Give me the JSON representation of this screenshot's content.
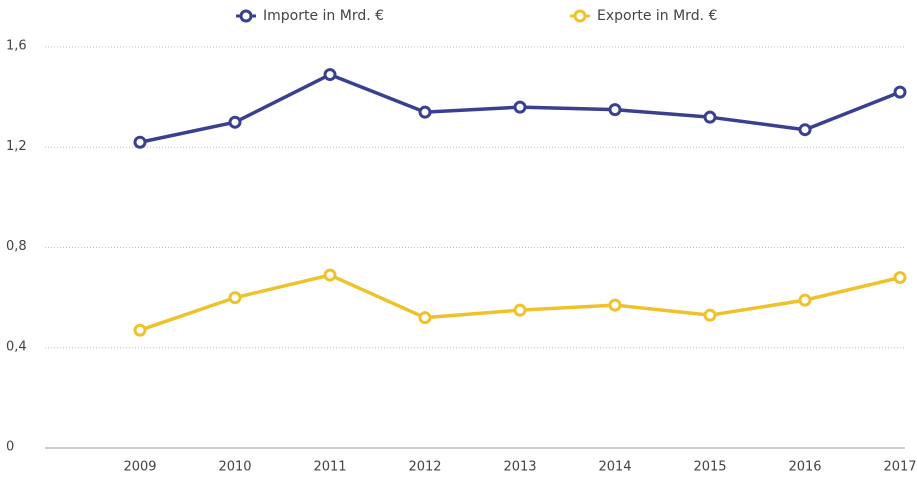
{
  "chart_data": {
    "type": "line",
    "x": [
      2009,
      2010,
      2011,
      2012,
      2013,
      2014,
      2015,
      2016,
      2017
    ],
    "xlim": [
      2008,
      2017
    ],
    "xticks": [
      2009,
      2010,
      2011,
      2012,
      2013,
      2014,
      2015,
      2016,
      2017
    ],
    "ylim": [
      0,
      1.6
    ],
    "yticks": [
      0,
      {
        "value": 0.4,
        "label": "0,4"
      },
      {
        "value": 0.8,
        "label": "0,8"
      },
      {
        "value": 1.2,
        "label": "1,2"
      },
      {
        "value": 1.6,
        "label": "1,6"
      }
    ],
    "grid": true,
    "legend": "top",
    "series": [
      {
        "name": "Importe in Mrd. €",
        "color": "#3a3f8f",
        "values": [
          1.22,
          1.3,
          1.49,
          1.34,
          1.36,
          1.35,
          1.32,
          1.27,
          1.42
        ]
      },
      {
        "name": "Exporte in Mrd. €",
        "color": "#eec22a",
        "values": [
          0.47,
          0.6,
          0.69,
          0.52,
          0.55,
          0.57,
          0.53,
          0.59,
          0.68
        ]
      }
    ]
  }
}
